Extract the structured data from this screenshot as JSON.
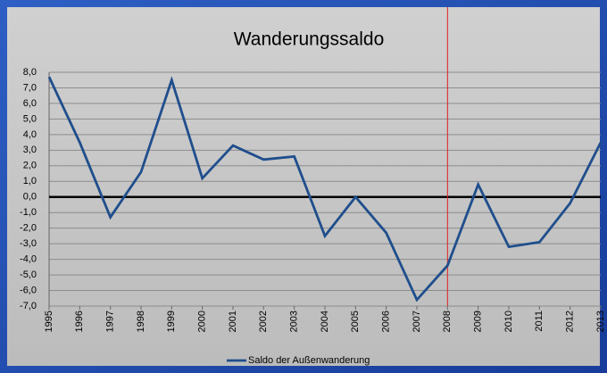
{
  "chart_data": {
    "type": "line",
    "title": "Wanderungssaldo",
    "categories": [
      "1995",
      "1996",
      "1997",
      "1998",
      "1999",
      "2000",
      "2001",
      "2002",
      "2003",
      "2004",
      "2005",
      "2006",
      "2007",
      "2008",
      "2009",
      "2010",
      "2011",
      "2012",
      "2013"
    ],
    "series": [
      {
        "name": "Saldo der Außenwanderung",
        "color": "#1f4e8c",
        "values": [
          7.7,
          3.5,
          -1.3,
          1.6,
          7.5,
          1.2,
          3.3,
          2.4,
          2.6,
          -2.5,
          0.0,
          -2.3,
          -6.6,
          -4.4,
          0.8,
          -3.2,
          -2.9,
          -0.4,
          3.5
        ]
      }
    ],
    "ylim": [
      -7,
      8
    ],
    "yticks": [
      {
        "value": -7,
        "label": "-7,0"
      },
      {
        "value": -6,
        "label": "-6,0"
      },
      {
        "value": -5,
        "label": "-5,0"
      },
      {
        "value": -4,
        "label": "-4,0"
      },
      {
        "value": -3,
        "label": "-3,0"
      },
      {
        "value": -2,
        "label": "-2,0"
      },
      {
        "value": -1,
        "label": "-1,0"
      },
      {
        "value": 0,
        "label": "0,0"
      },
      {
        "value": 1,
        "label": "1,0"
      },
      {
        "value": 2,
        "label": "2,0"
      },
      {
        "value": 3,
        "label": "3,0"
      },
      {
        "value": 4,
        "label": "4,0"
      },
      {
        "value": 5,
        "label": "5,0"
      },
      {
        "value": 6,
        "label": "6,0"
      },
      {
        "value": 7,
        "label": "7,0"
      },
      {
        "value": 8,
        "label": "8,0"
      }
    ],
    "grid": true,
    "zero_line": true,
    "legend": "bottom",
    "reference_line": {
      "x": "2008",
      "color": "#e02020"
    }
  }
}
